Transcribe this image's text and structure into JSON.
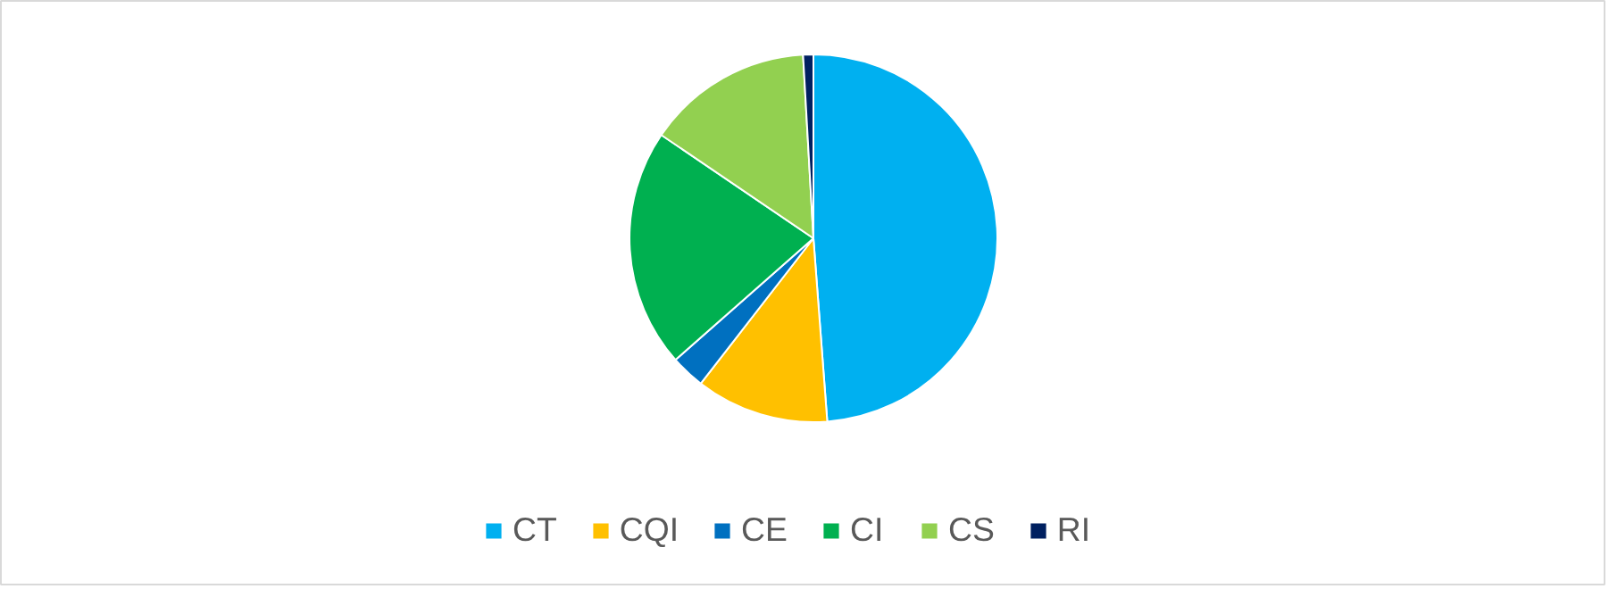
{
  "chart_data": {
    "type": "pie",
    "categories": [
      "CT",
      "CQI",
      "CE",
      "CI",
      "CS",
      "RI"
    ],
    "values": [
      48.8,
      11.7,
      3.0,
      21.0,
      14.6,
      0.9
    ],
    "colors": [
      "#00b0f0",
      "#ffc000",
      "#0070c0",
      "#00b050",
      "#92d050",
      "#002060"
    ],
    "legend": "bottom"
  }
}
